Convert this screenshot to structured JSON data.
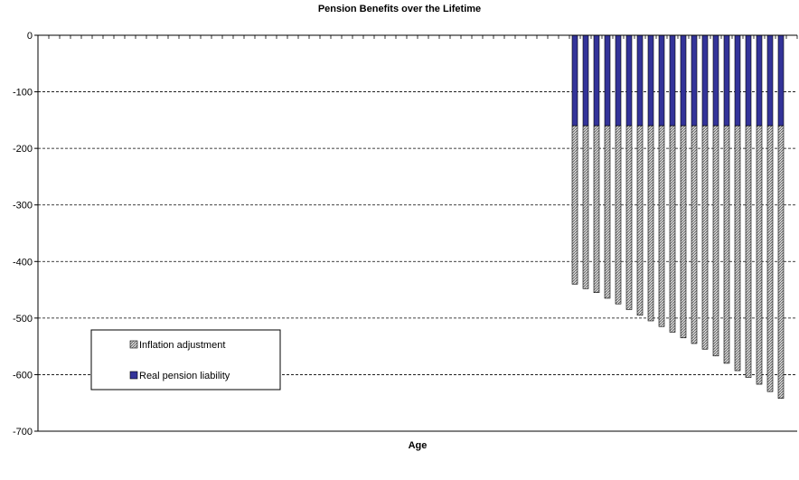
{
  "chart_data": {
    "type": "bar",
    "stacked": true,
    "title": "Pension Benefits over the Lifetime",
    "xlabel": "Age",
    "ylabel": "",
    "ylim": [
      -700,
      0
    ],
    "yticks": [
      0,
      -100,
      -200,
      -300,
      -400,
      -500,
      -600,
      -700
    ],
    "grid": true,
    "legend_position": "bottom-left",
    "x_slot_count": 70,
    "first_bar_slot": 49,
    "series": [
      {
        "name": "Real pension liability",
        "color": "#333399",
        "values": [
          -160,
          -160,
          -160,
          -160,
          -160,
          -160,
          -160,
          -160,
          -160,
          -160,
          -160,
          -160,
          -160,
          -160,
          -160,
          -160,
          -160,
          -160,
          -160,
          -160
        ]
      },
      {
        "name": "Inflation adjustment",
        "color": "#b3b3b3",
        "pattern": "hatch",
        "values": [
          -280,
          -288,
          -295,
          -305,
          -315,
          -325,
          -335,
          -345,
          -355,
          -365,
          -375,
          -385,
          -395,
          -407,
          -420,
          -433,
          -445,
          -457,
          -470,
          -482
        ]
      }
    ],
    "legend_order": [
      "Inflation adjustment",
      "Real pension liability"
    ]
  }
}
